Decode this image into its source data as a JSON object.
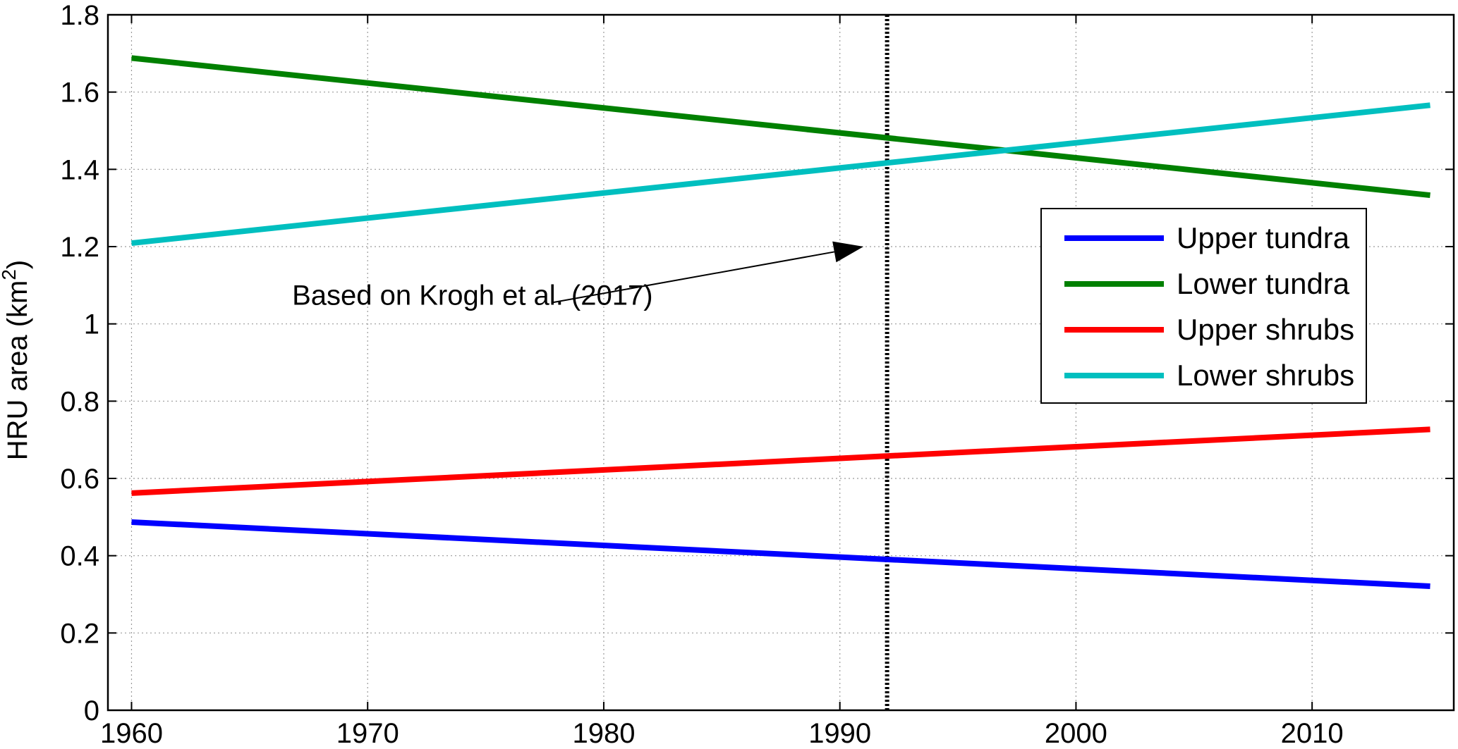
{
  "chart_data": {
    "type": "line",
    "xlabel": "",
    "ylabel": "HRU area (km",
    "ylabel_superscript": "2",
    "ylabel_suffix": ")",
    "xlim": [
      1959,
      2016
    ],
    "ylim": [
      0,
      1.8
    ],
    "xticks": [
      1960,
      1970,
      1980,
      1990,
      2000,
      2010
    ],
    "yticks": [
      0,
      0.2,
      0.4,
      0.6,
      0.8,
      1,
      1.2,
      1.4,
      1.6,
      1.8
    ],
    "ytick_labels": [
      "0",
      "0.2",
      "0.4",
      "0.6",
      "0.8",
      "1",
      "1.2",
      "1.4",
      "1.6",
      "1.8"
    ],
    "grid": true,
    "legend_position": "right",
    "series": [
      {
        "name": "Upper tundra",
        "color": "#0000ff",
        "x": [
          1960,
          2015
        ],
        "y": [
          0.487,
          0.321
        ]
      },
      {
        "name": "Lower tundra",
        "color": "#008000",
        "x": [
          1960,
          2015
        ],
        "y": [
          1.688,
          1.333
        ]
      },
      {
        "name": "Upper shrubs",
        "color": "#ff0000",
        "x": [
          1960,
          2015
        ],
        "y": [
          0.562,
          0.727
        ]
      },
      {
        "name": "Lower shrubs",
        "color": "#00bfbf",
        "x": [
          1960,
          2015
        ],
        "y": [
          1.209,
          1.566
        ]
      }
    ],
    "vline": {
      "x": 1992,
      "style": "dotted",
      "color": "#000000"
    },
    "annotation": {
      "text": "Based on Krogh et al. (2017)",
      "text_x": 1966.8,
      "text_y": 1.05,
      "arrow_x": 1991,
      "arrow_y": 1.2
    }
  }
}
